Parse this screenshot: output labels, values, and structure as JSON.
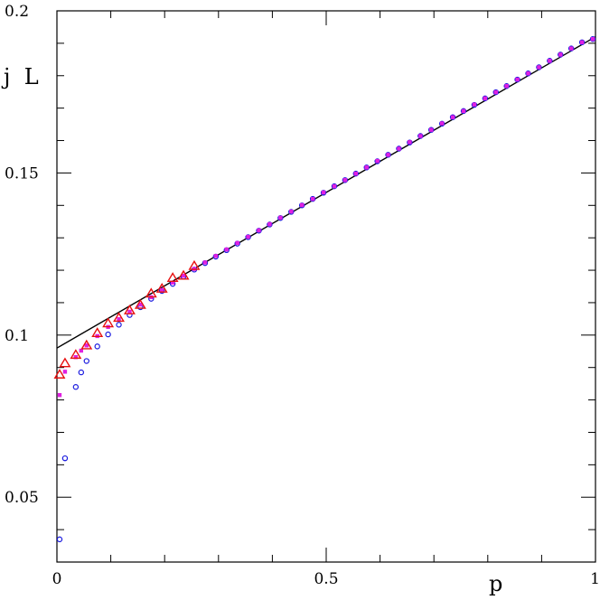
{
  "chart_data": {
    "type": "scatter",
    "title": "",
    "xlabel": "p",
    "ylabel": "j  L",
    "xlim": [
      0,
      1
    ],
    "ylim": [
      0.03,
      0.2
    ],
    "grid": false,
    "x_ticks": [
      {
        "value": 0,
        "label": "0"
      },
      {
        "value": 0.5,
        "label": "0.5"
      },
      {
        "value": 1,
        "label": "1"
      }
    ],
    "y_ticks": [
      {
        "value": 0.05,
        "label": "0.05"
      },
      {
        "value": 0.1,
        "label": "0.1"
      },
      {
        "value": 0.15,
        "label": "0.15"
      },
      {
        "value": 0.2,
        "label": "0.2"
      }
    ],
    "fit_line": {
      "x": [
        0,
        1
      ],
      "y": [
        0.096,
        0.192
      ],
      "color": "#000000"
    },
    "series": [
      {
        "marker": "open-circle",
        "color": "#1a1adf",
        "x": [
          0.005,
          0.015,
          0.035,
          0.045,
          0.055,
          0.075,
          0.095,
          0.115,
          0.135,
          0.155,
          0.175,
          0.195,
          0.215,
          0.235,
          0.255,
          0.275,
          0.295,
          0.315,
          0.335,
          0.355,
          0.375,
          0.395,
          0.415,
          0.435,
          0.455,
          0.475,
          0.495,
          0.515,
          0.535,
          0.555,
          0.575,
          0.595,
          0.615,
          0.635,
          0.655,
          0.675,
          0.695,
          0.715,
          0.735,
          0.755,
          0.775,
          0.795,
          0.815,
          0.835,
          0.855,
          0.875,
          0.895,
          0.915,
          0.935,
          0.955,
          0.975,
          0.995
        ],
        "y": [
          0.037,
          0.062,
          0.084,
          0.0885,
          0.092,
          0.0965,
          0.1002,
          0.1032,
          0.1062,
          0.1086,
          0.1112,
          0.1136,
          0.1158,
          0.118,
          0.1202,
          0.1222,
          0.1242,
          0.1262,
          0.1282,
          0.1302,
          0.1322,
          0.1341,
          0.1361,
          0.138,
          0.14,
          0.142,
          0.1439,
          0.1459,
          0.1478,
          0.1498,
          0.1517,
          0.1536,
          0.1556,
          0.1575,
          0.1594,
          0.1614,
          0.1633,
          0.1652,
          0.1672,
          0.1691,
          0.171,
          0.173,
          0.1749,
          0.1768,
          0.1788,
          0.1807,
          0.1826,
          0.1846,
          0.1865,
          0.1884,
          0.1903,
          0.1913
        ]
      },
      {
        "marker": "filled-square",
        "color": "#e020e0",
        "x": [
          0.005,
          0.015,
          0.035,
          0.045,
          0.055,
          0.075,
          0.095,
          0.115,
          0.135,
          0.155,
          0.175,
          0.195,
          0.215,
          0.235,
          0.255,
          0.275,
          0.295,
          0.315,
          0.335,
          0.355,
          0.375,
          0.395,
          0.415,
          0.435,
          0.455,
          0.475,
          0.495,
          0.515,
          0.535,
          0.555,
          0.575,
          0.595,
          0.615,
          0.635,
          0.655,
          0.675,
          0.695,
          0.715,
          0.735,
          0.755,
          0.775,
          0.795,
          0.815,
          0.835,
          0.855,
          0.875,
          0.895,
          0.915,
          0.935,
          0.955,
          0.975,
          0.995
        ],
        "y": [
          0.0815,
          0.0887,
          0.0932,
          0.0952,
          0.0968,
          0.0997,
          0.1025,
          0.1049,
          0.1072,
          0.1094,
          0.1117,
          0.1139,
          0.1162,
          0.1183,
          0.1204,
          0.1224,
          0.1244,
          0.1264,
          0.1284,
          0.1303,
          0.1323,
          0.1342,
          0.1362,
          0.1381,
          0.1401,
          0.142,
          0.144,
          0.1459,
          0.1478,
          0.1498,
          0.1517,
          0.1537,
          0.1556,
          0.1575,
          0.1595,
          0.1614,
          0.1633,
          0.1653,
          0.1672,
          0.1691,
          0.1711,
          0.173,
          0.1749,
          0.1768,
          0.1788,
          0.1807,
          0.1826,
          0.1846,
          0.1865,
          0.1884,
          0.1903,
          0.1913
        ]
      },
      {
        "marker": "open-triangle",
        "color": "#e81010",
        "x": [
          0.005,
          0.015,
          0.035,
          0.055,
          0.075,
          0.095,
          0.115,
          0.135,
          0.155,
          0.175,
          0.195,
          0.215,
          0.235,
          0.255
        ],
        "y": [
          0.0877,
          0.0912,
          0.0938,
          0.0967,
          0.1005,
          0.1035,
          0.1052,
          0.1075,
          0.1092,
          0.1127,
          0.1142,
          0.1175,
          0.1182,
          0.1212
        ]
      }
    ]
  }
}
